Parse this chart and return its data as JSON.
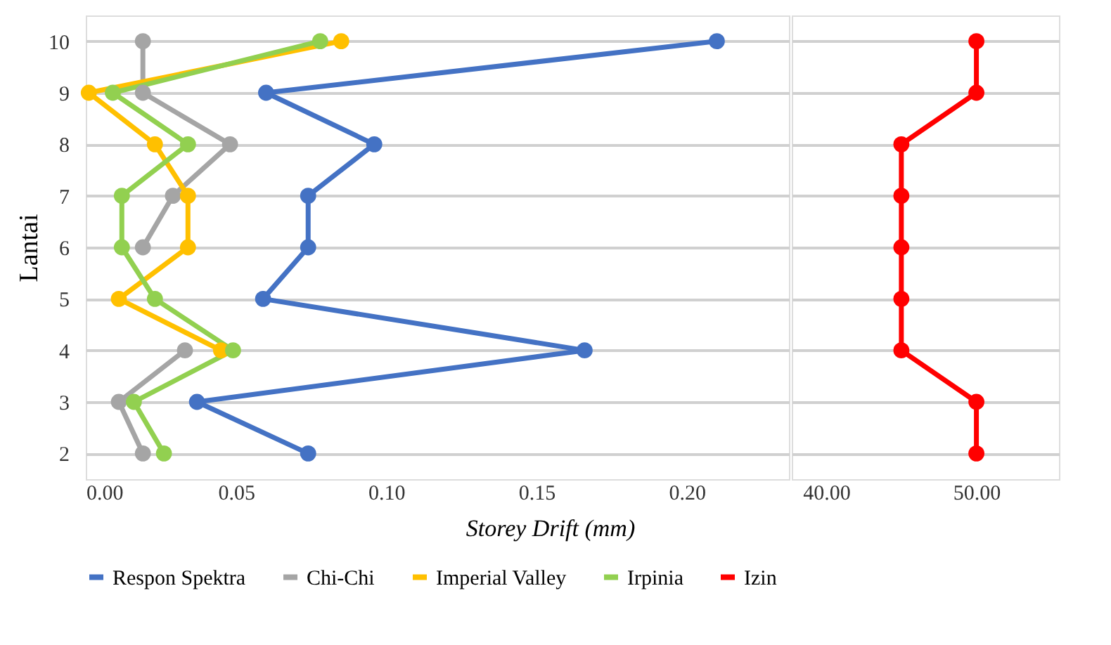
{
  "chart_data": [
    {
      "type": "line",
      "orientation": "horizontal",
      "ylabel": "Lantai",
      "xlabel": "Storey Drift (mm)",
      "categories": [
        "10",
        "9",
        "8",
        "7",
        "6",
        "5",
        "4",
        "3",
        "2"
      ],
      "series": [
        {
          "name": "Respon Spektra",
          "color": "#4472c4",
          "values": [
            0.21,
            0.06,
            0.096,
            0.074,
            0.074,
            0.059,
            0.166,
            0.037,
            0.074
          ]
        },
        {
          "name": "Chi-Chi",
          "color": "#a5a5a5",
          "values": [
            0.019,
            0.019,
            0.048,
            0.029,
            0.019,
            null,
            0.033,
            0.011,
            0.019
          ]
        },
        {
          "name": "Imperial Valley",
          "color": "#ffc000",
          "values": [
            0.085,
            0.001,
            0.023,
            0.034,
            0.034,
            0.011,
            0.045,
            null,
            null
          ]
        },
        {
          "name": "Irpinia",
          "color": "#92d050",
          "values": [
            0.078,
            0.009,
            0.034,
            0.012,
            0.012,
            0.023,
            0.049,
            0.016,
            0.026
          ]
        }
      ],
      "xlim": [
        0,
        0.234
      ],
      "xticks": [
        {
          "value": 0,
          "label": "0.00"
        },
        {
          "value": 0.05,
          "label": "0.05"
        },
        {
          "value": 0.1,
          "label": "0.10"
        },
        {
          "value": 0.15,
          "label": "0.15"
        },
        {
          "value": 0.2,
          "label": "0.20"
        }
      ],
      "grid": "y",
      "marker": "circle",
      "line_style": "solid",
      "legend": "bottom"
    },
    {
      "type": "line",
      "orientation": "horizontal",
      "categories": [
        "10",
        "9",
        "8",
        "7",
        "6",
        "5",
        "4",
        "3",
        "2"
      ],
      "series": [
        {
          "name": "Izin",
          "color": "#ff0000",
          "values": [
            50,
            50,
            45,
            45,
            45,
            45,
            45,
            50,
            50
          ]
        }
      ],
      "xlim": [
        37.7,
        55.5
      ],
      "xticks": [
        {
          "value": 40,
          "label": "40.00"
        },
        {
          "value": 50,
          "label": "50.00"
        }
      ],
      "grid": "y",
      "marker": "circle",
      "line_style": "solid",
      "legend": "bottom",
      "tick_labels": "x"
    }
  ]
}
